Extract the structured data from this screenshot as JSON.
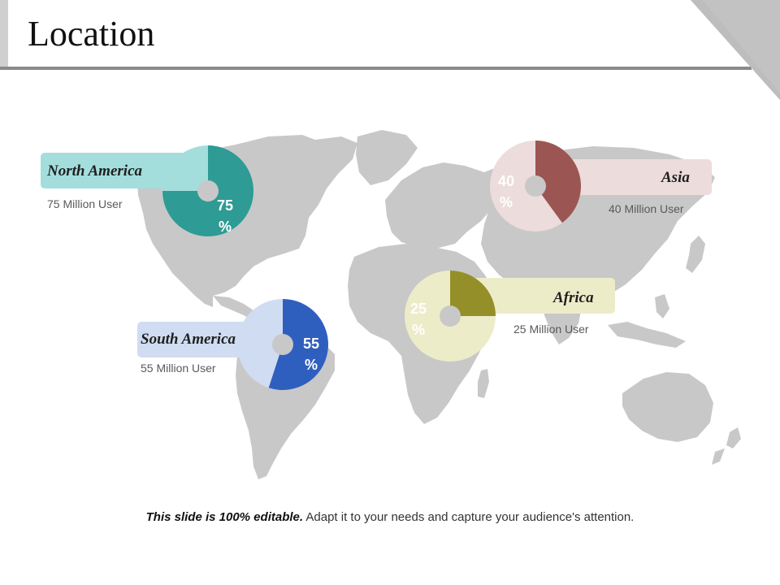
{
  "title": "Location",
  "regions": [
    {
      "name": "North America",
      "users": "75 Million User",
      "percent": 75,
      "pct_number": "75",
      "pct_sign": "%",
      "color": "#2e9b94",
      "remainder_color": "#a3dedd",
      "label_color": "#a3dedd"
    },
    {
      "name": "Asia",
      "users": "40 Million User",
      "percent": 40,
      "pct_number": "40",
      "pct_sign": "%",
      "color": "#9b5653",
      "remainder_color": "#ecdcdb",
      "label_color": "#ecdcdb"
    },
    {
      "name": "Africa",
      "users": "25 Million User",
      "percent": 25,
      "pct_number": "25",
      "pct_sign": "%",
      "color": "#958f2a",
      "remainder_color": "#edecc9",
      "label_color": "#edecc9"
    },
    {
      "name": "South America",
      "users": "55 Million User",
      "percent": 55,
      "pct_number": "55",
      "pct_sign": "%",
      "color": "#2f5fbe",
      "remainder_color": "#d0dcf1",
      "label_color": "#d0dcf1"
    }
  ],
  "footer": {
    "bold": "This slide is 100% editable.",
    "rest": " Adapt it to your needs and capture your audience's attention."
  },
  "colors": {
    "map": "#c8c8c8",
    "corner_light": "#dcdcdc",
    "corner_dark": "#bdbdbd"
  }
}
